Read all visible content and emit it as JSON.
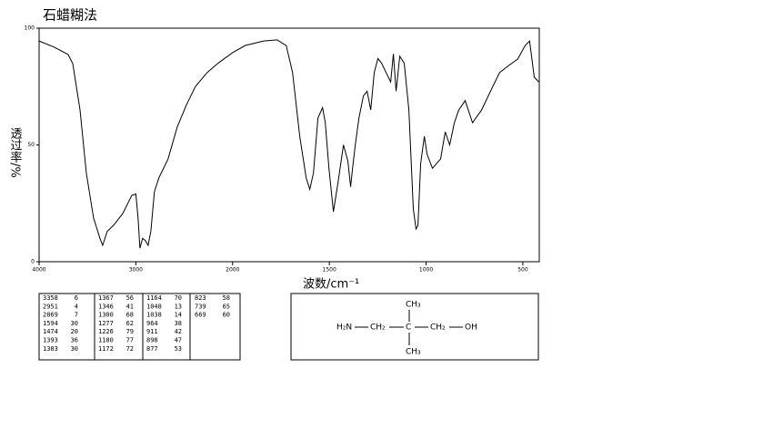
{
  "chart_data": {
    "type": "line",
    "title": "石蜡糊法",
    "x_label": "波数/cm⁻¹",
    "y_label": "透过率/%",
    "xlim": [
      4000,
      415
    ],
    "x_scale_change": 2000,
    "ylim": [
      0,
      100
    ],
    "xticks": [
      4000,
      3000,
      2000,
      1500,
      1000,
      500
    ],
    "yticks": [
      0,
      50,
      100
    ],
    "series": [
      {
        "color": "#000000",
        "x": [
          4000,
          3840,
          3700,
          3652,
          3577,
          3512,
          3437,
          3371,
          3343,
          3296,
          3230,
          3136,
          3042,
          3000,
          2977,
          2958,
          2930,
          2901,
          2873,
          2845,
          2808,
          2761,
          2667,
          2573,
          2479,
          2385,
          2263,
          2150,
          2000,
          1934,
          1840,
          1770,
          1723,
          1690,
          1653,
          1620,
          1601,
          1582,
          1559,
          1535,
          1521,
          1502,
          1479,
          1455,
          1427,
          1404,
          1390,
          1380,
          1366,
          1347,
          1324,
          1305,
          1286,
          1268,
          1249,
          1230,
          1207,
          1183,
          1169,
          1155,
          1136,
          1113,
          1089,
          1066,
          1052,
          1042,
          1028,
          1009,
          995,
          967,
          925,
          901,
          878,
          854,
          831,
          798,
          760,
          713,
          667,
          620,
          573,
          526,
          488,
          465,
          441,
          418
        ],
        "values": [
          94.5,
          91.8,
          88.7,
          84.8,
          65,
          38,
          18.7,
          10,
          7,
          13,
          15.6,
          20.6,
          28.4,
          29,
          18.7,
          5.8,
          10,
          9,
          7,
          13,
          30,
          36,
          44,
          57.6,
          67,
          75,
          81,
          85,
          89.5,
          92.6,
          94.5,
          95,
          92.6,
          81,
          53.7,
          36,
          31,
          38,
          61.5,
          66,
          59.5,
          40,
          21.4,
          34,
          50,
          43,
          32,
          40,
          50,
          61.5,
          71,
          73,
          65,
          81,
          87,
          85,
          81,
          77,
          89,
          73,
          88,
          85,
          65,
          22.6,
          14,
          15.6,
          42,
          53.7,
          46,
          40,
          44,
          55.6,
          50,
          59.5,
          65,
          69,
          59.5,
          65,
          73,
          81,
          84,
          86.8,
          92.6,
          94.5,
          79,
          77
        ]
      }
    ]
  },
  "peak_table": {
    "columns": [
      [
        [
          "3358",
          "6"
        ],
        [
          "2951",
          "4"
        ],
        [
          "2869",
          "7"
        ],
        [
          "1594",
          "30"
        ],
        [
          "1474",
          "20"
        ],
        [
          "1393",
          "36"
        ],
        [
          "1383",
          "30"
        ]
      ],
      [
        [
          "1367",
          "56"
        ],
        [
          "1346",
          "41"
        ],
        [
          "1300",
          "68"
        ],
        [
          "1277",
          "62"
        ],
        [
          "1226",
          "79"
        ],
        [
          "1180",
          "77"
        ],
        [
          "1172",
          "72"
        ]
      ],
      [
        [
          "1164",
          "70"
        ],
        [
          "1048",
          "13"
        ],
        [
          "1038",
          "14"
        ],
        [
          "964",
          "38"
        ],
        [
          "911",
          "42"
        ],
        [
          "898",
          "47"
        ],
        [
          "877",
          "53"
        ]
      ],
      [
        [
          "823",
          "58"
        ],
        [
          "739",
          "65"
        ],
        [
          "669",
          "60"
        ]
      ]
    ]
  },
  "structure": {
    "amine": "H₂N",
    "ch2_left": "CH₂",
    "carbon": "C",
    "ch2_right": "CH₂",
    "hydroxyl": "OH",
    "methyl_top": "CH₃",
    "methyl_bottom": "CH₃"
  }
}
